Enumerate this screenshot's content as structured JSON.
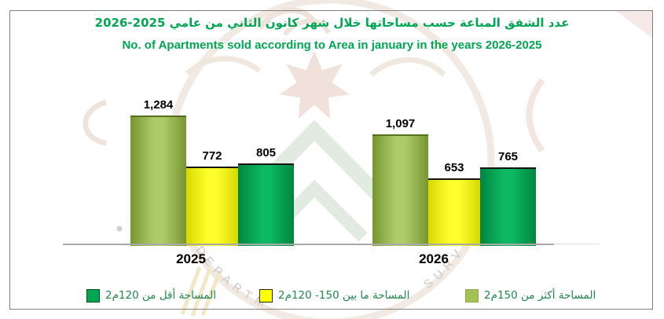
{
  "page": {
    "background": "#FFFFFF",
    "border_color": "#7F7F7F"
  },
  "title": {
    "arabic": "عدد الشقق المباعة حسب مساحاتها خلال  شهر كانون الثاني من عامي 2025-2026",
    "english": "No. of Apartments sold according to Area in january in the years 2026-2025",
    "color": "#00A651"
  },
  "chart_data": {
    "type": "bar",
    "categories": [
      "2025",
      "2026"
    ],
    "series": [
      {
        "name": "المساحة أكثر من 150م2",
        "color": "#A3C155",
        "values": [
          1284,
          1097
        ],
        "labels": [
          "1,284",
          "1,097"
        ]
      },
      {
        "name": "المساحة ما بين 150- 120م2",
        "color": "#FFFF00",
        "values": [
          772,
          653
        ],
        "labels": [
          "772",
          "653"
        ]
      },
      {
        "name": "المساحة أقل من 120م2",
        "color": "#00A651",
        "values": [
          805,
          765
        ],
        "labels": [
          "805",
          "765"
        ]
      }
    ],
    "ylim": [
      0,
      1400
    ],
    "grid": false,
    "axis_color": "#A8A8A8",
    "value_label_color": "#000000",
    "legend_position": "bottom"
  },
  "legend": {
    "text_color": "#21864A",
    "entries": [
      {
        "label": "المساحة أقل من 120م2",
        "color": "#00A651",
        "border": "#00511F"
      },
      {
        "label": "المساحة ما بين 150- 120م2",
        "color": "#FFFF00",
        "border": "#2B2B00"
      },
      {
        "label": "المساحة أكثر من 150م2",
        "color": "#A3C155",
        "border": "#8FA944"
      }
    ]
  },
  "bar_style": [
    {
      "edge": "#77962F",
      "mid": "#AECB6C",
      "top": "#55701E"
    },
    {
      "edge": "#D8D800",
      "mid": "#FFFF2E",
      "top": "#141414"
    },
    {
      "edge": "#008540",
      "mid": "#0DB863",
      "top": "#141414"
    }
  ],
  "watermark": {
    "arc_text_left": "DEPARTM",
    "arc_text_right": "SURV"
  }
}
